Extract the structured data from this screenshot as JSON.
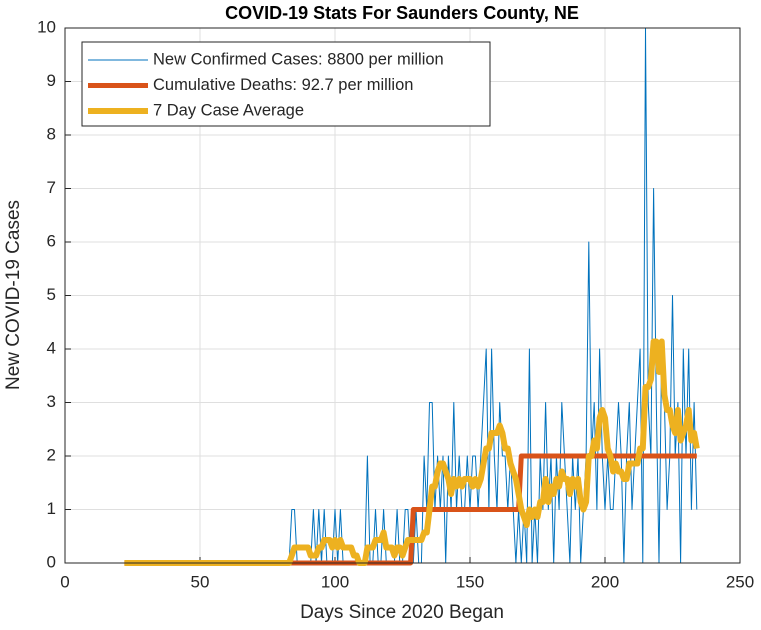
{
  "chart_data": {
    "type": "line",
    "title": "COVID-19 Stats For Saunders County, NE",
    "x_label": "Days Since 2020 Began",
    "y_label": "New COVID-19 Cases",
    "xlim": [
      0,
      250
    ],
    "xticks": [
      0,
      50,
      100,
      150,
      200,
      250
    ],
    "ylim": [
      0,
      10
    ],
    "yticks": [
      0,
      1,
      2,
      3,
      4,
      5,
      6,
      7,
      8,
      9,
      10
    ],
    "grid": true,
    "legend": "upper left",
    "x": [
      22,
      23,
      24,
      25,
      26,
      27,
      28,
      29,
      30,
      31,
      32,
      33,
      34,
      35,
      36,
      37,
      38,
      39,
      40,
      41,
      42,
      43,
      44,
      45,
      46,
      47,
      48,
      49,
      50,
      51,
      52,
      53,
      54,
      55,
      56,
      57,
      58,
      59,
      60,
      61,
      62,
      63,
      64,
      65,
      66,
      67,
      68,
      69,
      70,
      71,
      72,
      73,
      74,
      75,
      76,
      77,
      78,
      79,
      80,
      81,
      82,
      83,
      84,
      85,
      86,
      87,
      88,
      89,
      90,
      91,
      92,
      93,
      94,
      95,
      96,
      97,
      98,
      99,
      100,
      101,
      102,
      103,
      104,
      105,
      106,
      107,
      108,
      109,
      110,
      111,
      112,
      113,
      114,
      115,
      116,
      117,
      118,
      119,
      120,
      121,
      122,
      123,
      124,
      125,
      126,
      127,
      128,
      129,
      130,
      131,
      132,
      133,
      134,
      135,
      136,
      137,
      138,
      139,
      140,
      141,
      142,
      143,
      144,
      145,
      146,
      147,
      148,
      149,
      150,
      151,
      152,
      153,
      154,
      155,
      156,
      157,
      158,
      159,
      160,
      161,
      162,
      163,
      164,
      165,
      166,
      167,
      168,
      169,
      170,
      171,
      172,
      173,
      174,
      175,
      176,
      177,
      178,
      179,
      180,
      181,
      182,
      183,
      184,
      185,
      186,
      187,
      188,
      189,
      190,
      191,
      192,
      193,
      194,
      195,
      196,
      197,
      198,
      199,
      200,
      201,
      202,
      203,
      204,
      205,
      206,
      207,
      208,
      209,
      210,
      211,
      212,
      213,
      214,
      215,
      216,
      217,
      218,
      219,
      220,
      221,
      222,
      223,
      224,
      225,
      226,
      227,
      228,
      229,
      230,
      231,
      232,
      233,
      234
    ],
    "series": [
      {
        "name": "New Confirmed Cases: 8800 per million",
        "color": "#0072bd",
        "width": 1,
        "values": [
          0,
          0,
          0,
          0,
          0,
          0,
          0,
          0,
          0,
          0,
          0,
          0,
          0,
          0,
          0,
          0,
          0,
          0,
          0,
          0,
          0,
          0,
          0,
          0,
          0,
          0,
          0,
          0,
          0,
          0,
          0,
          0,
          0,
          0,
          0,
          0,
          0,
          0,
          0,
          0,
          0,
          0,
          0,
          0,
          0,
          0,
          0,
          0,
          0,
          0,
          0,
          0,
          0,
          0,
          0,
          0,
          0,
          0,
          0,
          0,
          0,
          0,
          1,
          1,
          0,
          0,
          0,
          0,
          0,
          0,
          1,
          0,
          1,
          0,
          1,
          0,
          0,
          0,
          1,
          0,
          1,
          0,
          0,
          0,
          0,
          0,
          0,
          0,
          0,
          0,
          2,
          0,
          0,
          1,
          0,
          0,
          1,
          0,
          0,
          0,
          0,
          1,
          0,
          0,
          1,
          1,
          0,
          0,
          1,
          0,
          0,
          2,
          1,
          3,
          3,
          1,
          2,
          1,
          2,
          0,
          2,
          1,
          3,
          1,
          2,
          1,
          1,
          2,
          1,
          2,
          2,
          1,
          2,
          3,
          4,
          1,
          4,
          2,
          1,
          3,
          2,
          2,
          1,
          2,
          1,
          0,
          1,
          0,
          1,
          0,
          4,
          0,
          1,
          0,
          2,
          1,
          3,
          1,
          2,
          0,
          2,
          1,
          3,
          2,
          1,
          0,
          2,
          1,
          2,
          0,
          1,
          2,
          6,
          2,
          3,
          1,
          4,
          2,
          1,
          2,
          1,
          1,
          2,
          3,
          2,
          0,
          2,
          3,
          1,
          2,
          3,
          4,
          0,
          10,
          3,
          2,
          7,
          3,
          0,
          4,
          3,
          1,
          2,
          5,
          2,
          3,
          0,
          4,
          2,
          4,
          1,
          3,
          1
        ]
      },
      {
        "name": "Cumulative Deaths: 92.7 per million",
        "color": "#d95319",
        "width": 5,
        "values": [
          0,
          0,
          0,
          0,
          0,
          0,
          0,
          0,
          0,
          0,
          0,
          0,
          0,
          0,
          0,
          0,
          0,
          0,
          0,
          0,
          0,
          0,
          0,
          0,
          0,
          0,
          0,
          0,
          0,
          0,
          0,
          0,
          0,
          0,
          0,
          0,
          0,
          0,
          0,
          0,
          0,
          0,
          0,
          0,
          0,
          0,
          0,
          0,
          0,
          0,
          0,
          0,
          0,
          0,
          0,
          0,
          0,
          0,
          0,
          0,
          0,
          0,
          0,
          0,
          0,
          0,
          0,
          0,
          0,
          0,
          0,
          0,
          0,
          0,
          0,
          0,
          0,
          0,
          0,
          0,
          0,
          0,
          0,
          0,
          0,
          0,
          0,
          0,
          0,
          0,
          0,
          0,
          0,
          0,
          0,
          0,
          0,
          0,
          0,
          0,
          0,
          0,
          0,
          0,
          0,
          0,
          0,
          1,
          1,
          1,
          1,
          1,
          1,
          1,
          1,
          1,
          1,
          1,
          1,
          1,
          1,
          1,
          1,
          1,
          1,
          1,
          1,
          1,
          1,
          1,
          1,
          1,
          1,
          1,
          1,
          1,
          1,
          1,
          1,
          1,
          1,
          1,
          1,
          1,
          1,
          1,
          1,
          2,
          2,
          2,
          2,
          2,
          2,
          2,
          2,
          2,
          2,
          2,
          2,
          2,
          2,
          2,
          2,
          2,
          2,
          2,
          2,
          2,
          2,
          2,
          2,
          2,
          2,
          2,
          2,
          2,
          2,
          2,
          2,
          2,
          2,
          2,
          2,
          2,
          2,
          2,
          2,
          2,
          2,
          2,
          2,
          2,
          2,
          2,
          2,
          2,
          2,
          2,
          2,
          2,
          2,
          2,
          2,
          2,
          2,
          2,
          2,
          2,
          2,
          2,
          2,
          2,
          2
        ]
      },
      {
        "name": "7 Day Case Average",
        "color": "#edb120",
        "width": 6,
        "values": [
          0,
          0,
          0,
          0,
          0,
          0,
          0,
          0,
          0,
          0,
          0,
          0,
          0,
          0,
          0,
          0,
          0,
          0,
          0,
          0,
          0,
          0,
          0,
          0,
          0,
          0,
          0,
          0,
          0,
          0,
          0,
          0,
          0,
          0,
          0,
          0,
          0,
          0,
          0,
          0,
          0,
          0,
          0,
          0,
          0,
          0,
          0,
          0,
          0,
          0,
          0,
          0,
          0,
          0,
          0,
          0,
          0,
          0,
          0,
          0,
          0,
          0,
          0.14,
          0.29,
          0.29,
          0.29,
          0.29,
          0.29,
          0.29,
          0.14,
          0.14,
          0.14,
          0.29,
          0.29,
          0.43,
          0.43,
          0.43,
          0.29,
          0.43,
          0.29,
          0.43,
          0.29,
          0.29,
          0.29,
          0.29,
          0.14,
          0.14,
          0,
          0,
          0,
          0.29,
          0.29,
          0.29,
          0.43,
          0.43,
          0.43,
          0.57,
          0.29,
          0.29,
          0.29,
          0.14,
          0.29,
          0.29,
          0.14,
          0.29,
          0.43,
          0.43,
          0.43,
          0.43,
          0.43,
          0.43,
          0.57,
          0.57,
          1,
          1.43,
          1.43,
          1.71,
          1.86,
          1.86,
          1.71,
          1.57,
          1.29,
          1.57,
          1.43,
          1.57,
          1.43,
          1.57,
          1.57,
          1.57,
          1.43,
          1.57,
          1.43,
          1.57,
          1.86,
          2.14,
          2.14,
          2.43,
          2.43,
          2.43,
          2.57,
          2.43,
          2.14,
          2.14,
          1.86,
          1.71,
          1.57,
          1.29,
          1,
          0.86,
          0.71,
          1,
          0.86,
          1,
          0.86,
          1.14,
          1.14,
          1.57,
          1.14,
          1.43,
          1.29,
          1.57,
          1.43,
          1.71,
          1.57,
          1.57,
          1.29,
          1.57,
          1.43,
          1.57,
          1.14,
          1,
          1.14,
          2,
          2,
          2.29,
          2.14,
          2.71,
          2.86,
          2.71,
          2.14,
          2,
          1.71,
          1.86,
          1.71,
          1.71,
          1.57,
          1.57,
          1.86,
          1.86,
          1.86,
          1.86,
          2.14,
          2.14,
          3.29,
          3.29,
          3.43,
          4.14,
          4.14,
          3.57,
          4.14,
          3.14,
          2.86,
          2.86,
          2.57,
          2.43,
          2.86,
          2.29,
          2.43,
          2.57,
          2.86,
          2.29,
          2.43,
          2.14
        ]
      }
    ]
  }
}
